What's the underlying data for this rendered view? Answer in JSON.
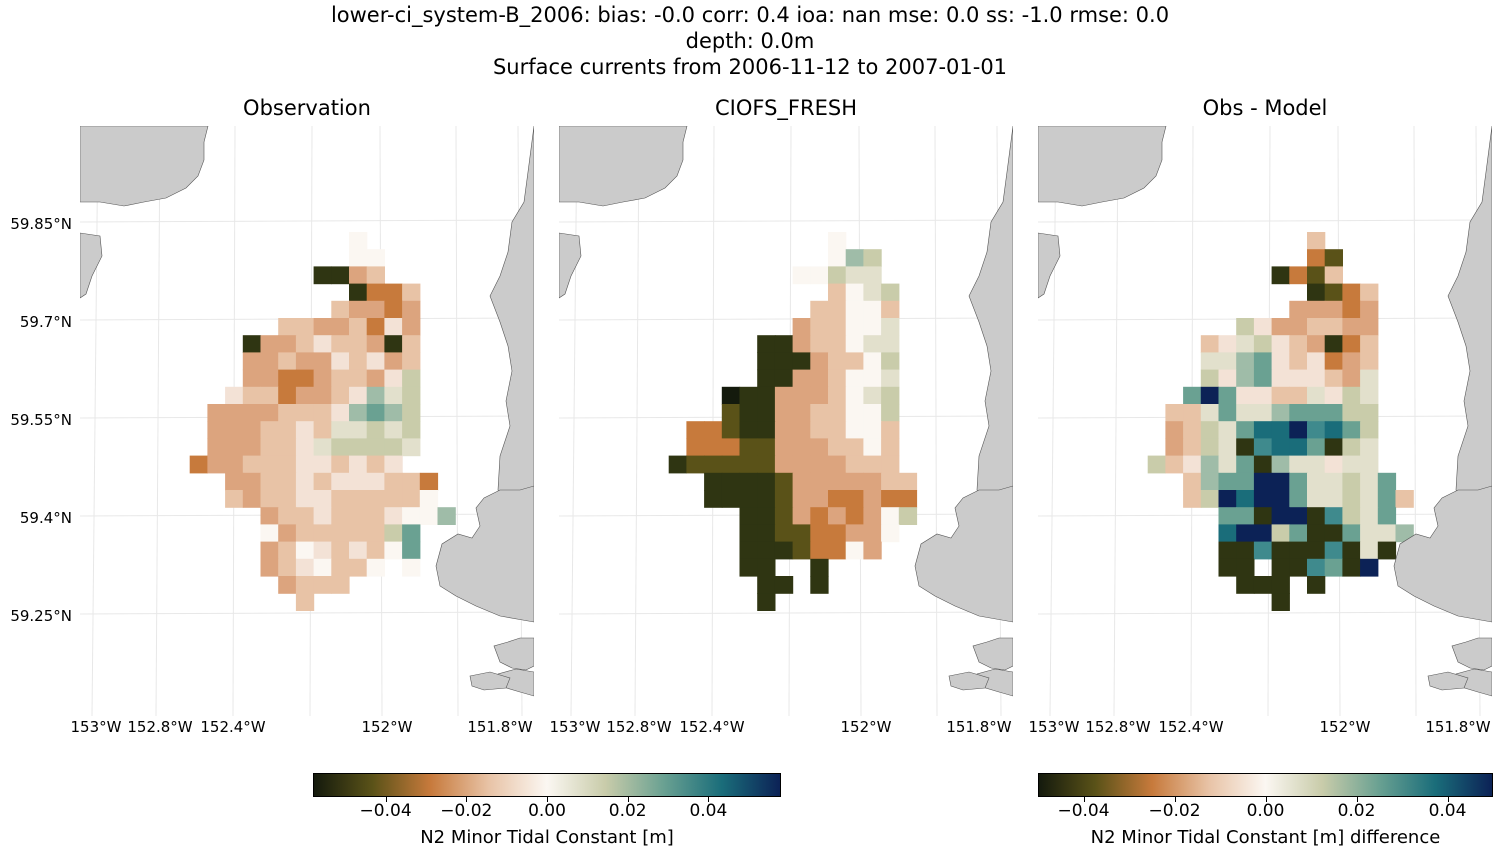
{
  "header": {
    "line1": "lower-ci_system-B_2006: bias: -0.0  corr: 0.4  ioa: nan  mse: 0.0  ss: -1.0  rmse: 0.0",
    "line2": "depth: 0.0m",
    "line3": "Surface currents from 2006-11-12 to 2007-01-01"
  },
  "panels": [
    {
      "title": "Observation"
    },
    {
      "title": "CIOFS_FRESH"
    },
    {
      "title": "Obs - Model"
    }
  ],
  "lat_ticks": [
    "59.85°N",
    "59.7°N",
    "59.55°N",
    "59.4°N",
    "59.25°N"
  ],
  "lon_ticks": [
    "153°W",
    "152.8°W",
    "152.4°W",
    "152°W",
    "151.8°W"
  ],
  "colorbars": [
    {
      "label": "N2 Minor Tidal Constant [m]",
      "ticks": [
        "−0.04",
        "−0.02",
        "0.00",
        "0.02",
        "0.04"
      ],
      "range": [
        -0.058,
        0.058
      ]
    },
    {
      "label": "N2 Minor Tidal Constant [m] difference",
      "ticks": [
        "−0.04",
        "−0.02",
        "0.00",
        "0.02",
        "0.04"
      ],
      "range": [
        -0.05,
        0.05
      ]
    }
  ],
  "colors": {
    "land": "#cbcbcb",
    "gridline": "#e8e8e8",
    "colormap": [
      "#141a0d",
      "#5a5218",
      "#c77a3c",
      "#e8c3a6",
      "#fbf7f2",
      "#c9ccaa",
      "#6aa192",
      "#1a6d7a",
      "#0c2256"
    ]
  },
  "chart_data": {
    "type": "heatmap",
    "grid": {
      "cols": 16,
      "rows": 22,
      "lon_range": [
        -152.7,
        -151.95
      ],
      "lat_range": [
        59.26,
        59.84
      ]
    },
    "observation_rows": [
      "..........W.....",
      "..........WW....",
      "........KKDE....",
      "..........KCCE..",
      ".........EDDCD..",
      "......EEDDECFD..",
      "....KDDEFEEDKE..",
      "....DDEDDFEFDE..",
      "....DDCCDEEDFH..",
      "...FEECDDEFIGH..",
      "..DDDDEEEFIJIH..",
      "..DDDEEFEGGHGH..",
      "..DDDEEFGHHHHG..",
      ".CDDEEEFFEFEF...",
      "...DDEEFEFFFEEC.",
      "...EDEEFFEEEEEW.",
      ".....DEEFEEEFWWI",
      ".....WDEEEEEHJ..",
      ".....DEWFEFEWJ..",
      ".....DEFWEEW.W..",
      "......DEEE......",
      ".......E........"
    ],
    "model_rows": [
      "..........W.....",
      "..........WIH...",
      "........WWHGG...",
      "..........EWGH..",
      ".........EEWWE..",
      "........DEEWWG..",
      "......KKDEEWGG..",
      "......KKKDEEWH..",
      "......KKDDEWWG..",
      "....AKKDDDEWGH..",
      "....BKKDDEEWWH..",
      "..CCBKKDDEEWWE..",
      "..CCCBBDDDEEWE..",
      ".KBBBBBDDDDEEE..",
      "...KKKKBDDDDDEE.",
      "...KKKKBDDCCDCC.",
      ".....KKBDCDCDWH.",
      ".....KKBBCCDDW..",
      ".....KKKBCCWD...",
      ".....KK..K......",
      "......KK.K......",
      "......K........."
    ],
    "difference_rows": [
      "..........E.....",
      "..........CB....",
      "........KCBE....",
      "..........KBCE..",
      ".........DDDCD..",
      "......HFDDEEDD..",
      "....EFGHFEDKCE..",
      "....GGIJFEFCDE..",
      "....HFIJFFFEDG..",
      "...JNJFFEEGFHG..",
      "..EEGJGGIJJJHH..",
      "..DEHGJMMNLMJH..",
      "..DEHGKLMMJKHG..",
      ".HEFIGJKIGGFGG..",
      "...EIJJNNJGGHGJ.",
      "...EHNMNNJGGHGJE",
      ".....JJKNNKLHGJ.",
      ".....MNNHJKKJGGI",
      ".....KKLKKKLKGK.",
      ".....KK.KKLJKN..",
      "......KKK.K.....",
      "........K......."
    ]
  }
}
